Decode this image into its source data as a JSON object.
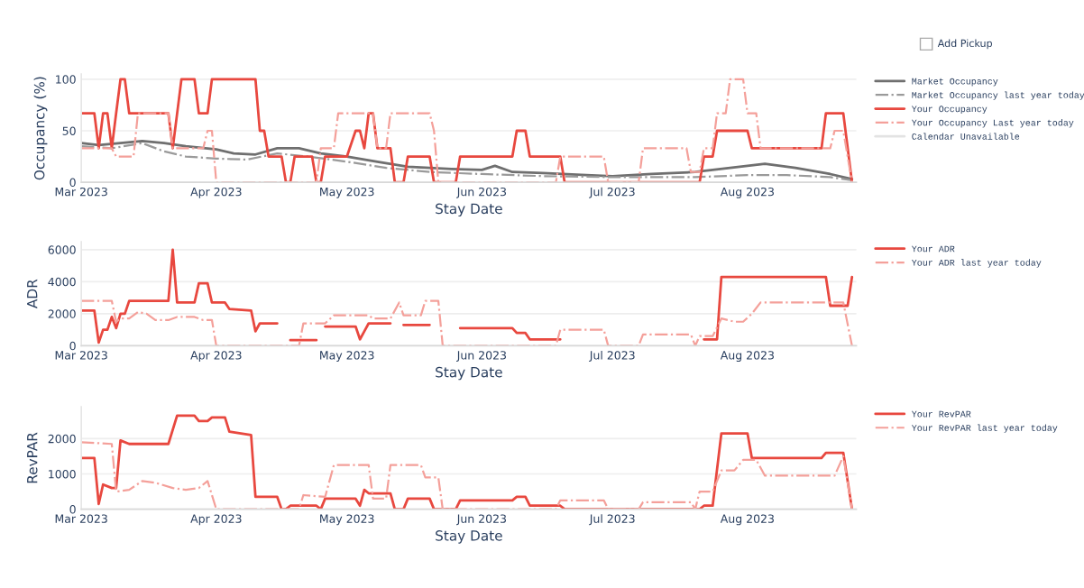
{
  "chart_data": [
    {
      "type": "line",
      "ylabel": "Occupancy (%)",
      "xlabel": "Stay Date",
      "ylim": [
        0,
        105
      ],
      "yticks": [
        0,
        50,
        100
      ],
      "xlim": [
        "2023-03-01",
        "2023-08-26"
      ],
      "xticks": [
        {
          "value": "2023-03-01",
          "label": "Mar 2023"
        },
        {
          "value": "2023-04-01",
          "label": "Apr 2023"
        },
        {
          "value": "2023-05-01",
          "label": "May 2023"
        },
        {
          "value": "2023-06-01",
          "label": "Jun 2023"
        },
        {
          "value": "2023-07-01",
          "label": "Jul 2023"
        },
        {
          "value": "2023-08-01",
          "label": "Aug 2023"
        }
      ],
      "grid": "y",
      "legend": "right",
      "annotations": [
        "Add Pickup"
      ],
      "series": [
        {
          "name": "Market Occupancy",
          "color": "#6f6f6f",
          "line_style": "solid",
          "x": [
            "2023-03-01",
            "2023-03-05",
            "2023-03-10",
            "2023-03-15",
            "2023-03-20",
            "2023-03-25",
            "2023-04-01",
            "2023-04-05",
            "2023-04-10",
            "2023-04-15",
            "2023-04-20",
            "2023-04-25",
            "2023-05-01",
            "2023-05-08",
            "2023-05-15",
            "2023-05-25",
            "2023-06-01",
            "2023-06-04",
            "2023-06-08",
            "2023-06-15",
            "2023-06-25",
            "2023-07-01",
            "2023-07-10",
            "2023-07-20",
            "2023-07-28",
            "2023-08-05",
            "2023-08-12",
            "2023-08-20",
            "2023-08-25"
          ],
          "values": [
            38,
            36,
            38,
            40,
            38,
            35,
            32,
            28,
            27,
            33,
            33,
            28,
            25,
            20,
            15,
            13,
            12,
            16,
            10,
            9,
            7,
            6,
            8,
            10,
            14,
            18,
            14,
            8,
            3
          ]
        },
        {
          "name": "Market Occupancy last year today",
          "color": "#9a9a9a",
          "line_style": "dashdot",
          "x": [
            "2023-03-01",
            "2023-03-08",
            "2023-03-15",
            "2023-03-20",
            "2023-03-25",
            "2023-04-01",
            "2023-04-08",
            "2023-04-15",
            "2023-04-22",
            "2023-05-01",
            "2023-05-10",
            "2023-05-20",
            "2023-06-01",
            "2023-06-15",
            "2023-07-01",
            "2023-07-20",
            "2023-08-01",
            "2023-08-10",
            "2023-08-20",
            "2023-08-25"
          ],
          "values": [
            35,
            33,
            38,
            30,
            25,
            23,
            22,
            28,
            25,
            20,
            14,
            10,
            8,
            6,
            5,
            5,
            7,
            7,
            5,
            2
          ]
        },
        {
          "name": "Your Occupancy",
          "color": "#e8483f",
          "line_style": "solid",
          "x": [
            "2023-03-01",
            "2023-03-04",
            "2023-03-05",
            "2023-03-06",
            "2023-03-07",
            "2023-03-08",
            "2023-03-09",
            "2023-03-10",
            "2023-03-11",
            "2023-03-12",
            "2023-03-21",
            "2023-03-22",
            "2023-03-24",
            "2023-03-27",
            "2023-03-28",
            "2023-03-30",
            "2023-03-31",
            "2023-04-10",
            "2023-04-11",
            "2023-04-12",
            "2023-04-13",
            "2023-04-16",
            "2023-04-17",
            "2023-04-18",
            "2023-04-19",
            "2023-04-23",
            "2023-04-24",
            "2023-04-25",
            "2023-04-26",
            "2023-05-01",
            "2023-05-03",
            "2023-05-04",
            "2023-05-05",
            "2023-05-06",
            "2023-05-07",
            "2023-05-08",
            "2023-05-11",
            "2023-05-12",
            "2023-05-14",
            "2023-05-15",
            "2023-05-20",
            "2023-05-21",
            "2023-05-26",
            "2023-05-27",
            "2023-06-08",
            "2023-06-09",
            "2023-06-11",
            "2023-06-12",
            "2023-06-19",
            "2023-06-20",
            "2023-07-21",
            "2023-07-22",
            "2023-07-24",
            "2023-07-25",
            "2023-08-01",
            "2023-08-02",
            "2023-08-18",
            "2023-08-19",
            "2023-08-23",
            "2023-08-25"
          ],
          "values": [
            67,
            67,
            33,
            67,
            67,
            33,
            67,
            100,
            100,
            67,
            67,
            33,
            100,
            100,
            67,
            67,
            100,
            100,
            50,
            50,
            25,
            25,
            0,
            0,
            25,
            25,
            0,
            0,
            25,
            25,
            50,
            50,
            33,
            67,
            67,
            33,
            33,
            0,
            0,
            25,
            25,
            0,
            0,
            25,
            25,
            50,
            50,
            25,
            25,
            0,
            0,
            25,
            25,
            50,
            50,
            33,
            33,
            67,
            67,
            0
          ]
        },
        {
          "name": "Your Occupancy Last year today",
          "color": "#f4a09a",
          "line_style": "dashdot",
          "x": [
            "2023-03-01",
            "2023-03-08",
            "2023-03-09",
            "2023-03-13",
            "2023-03-14",
            "2023-03-21",
            "2023-03-22",
            "2023-03-29",
            "2023-03-30",
            "2023-03-31",
            "2023-04-01",
            "2023-04-24",
            "2023-04-25",
            "2023-04-28",
            "2023-04-29",
            "2023-05-07",
            "2023-05-08",
            "2023-05-10",
            "2023-05-11",
            "2023-05-20",
            "2023-05-21",
            "2023-05-22",
            "2023-06-18",
            "2023-06-19",
            "2023-06-29",
            "2023-06-30",
            "2023-07-07",
            "2023-07-08",
            "2023-07-18",
            "2023-07-19",
            "2023-07-21",
            "2023-07-22",
            "2023-07-24",
            "2023-07-25",
            "2023-07-27",
            "2023-07-28",
            "2023-07-31",
            "2023-08-01",
            "2023-08-03",
            "2023-08-04",
            "2023-08-20",
            "2023-08-21",
            "2023-08-23",
            "2023-08-25"
          ],
          "values": [
            33,
            33,
            25,
            25,
            67,
            67,
            33,
            33,
            50,
            50,
            0,
            0,
            33,
            33,
            67,
            67,
            33,
            33,
            67,
            67,
            50,
            0,
            0,
            25,
            25,
            0,
            0,
            33,
            33,
            10,
            10,
            33,
            33,
            67,
            67,
            100,
            100,
            67,
            67,
            33,
            33,
            50,
            50,
            0
          ]
        },
        {
          "name": "Calendar Unavailable",
          "color": "#e3e3e3",
          "line_style": "solid"
        }
      ]
    },
    {
      "type": "line",
      "ylabel": "ADR",
      "xlabel": "Stay Date",
      "ylim": [
        0,
        6500
      ],
      "yticks": [
        0,
        2000,
        4000,
        6000
      ],
      "xlim": [
        "2023-03-01",
        "2023-08-26"
      ],
      "xticks": [
        {
          "value": "2023-03-01",
          "label": "Mar 2023"
        },
        {
          "value": "2023-04-01",
          "label": "Apr 2023"
        },
        {
          "value": "2023-05-01",
          "label": "May 2023"
        },
        {
          "value": "2023-06-01",
          "label": "Jun 2023"
        },
        {
          "value": "2023-07-01",
          "label": "Jul 2023"
        },
        {
          "value": "2023-08-01",
          "label": "Aug 2023"
        }
      ],
      "grid": "y",
      "legend": "right",
      "series": [
        {
          "name": "Your ADR",
          "color": "#e8483f",
          "line_style": "solid",
          "x": [
            "2023-03-01",
            "2023-03-04",
            "2023-03-05",
            "2023-03-06",
            "2023-03-07",
            "2023-03-08",
            "2023-03-09",
            "2023-03-10",
            "2023-03-11",
            "2023-03-12",
            "2023-03-21",
            "2023-03-22",
            "2023-03-23",
            "2023-03-27",
            "2023-03-28",
            "2023-03-30",
            "2023-03-31",
            "2023-04-03",
            "2023-04-04",
            "2023-04-09",
            "2023-04-10",
            "2023-04-11",
            "2023-04-15",
            "2023-04-16",
            "2023-04-18",
            "2023-04-24",
            "2023-04-25",
            "2023-04-26",
            "2023-05-03",
            "2023-05-04",
            "2023-05-05",
            "2023-05-06",
            "2023-05-11",
            "2023-05-12",
            "2023-05-14",
            "2023-05-20",
            "2023-05-21",
            "2023-05-27",
            "2023-06-08",
            "2023-06-09",
            "2023-06-11",
            "2023-06-12",
            "2023-06-19",
            "2023-06-20",
            "2023-07-22",
            "2023-07-25",
            "2023-07-26",
            "2023-08-19",
            "2023-08-20",
            "2023-08-24",
            "2023-08-25"
          ],
          "values": [
            2200,
            2200,
            200,
            1000,
            1000,
            1800,
            1100,
            2000,
            2000,
            2800,
            2800,
            6000,
            2700,
            2700,
            3900,
            3900,
            2700,
            2700,
            2300,
            2200,
            900,
            1400,
            1400,
            null,
            350,
            350,
            null,
            1200,
            1200,
            400,
            900,
            1400,
            1400,
            null,
            1300,
            1300,
            null,
            1100,
            1100,
            800,
            800,
            400,
            400,
            null,
            400,
            400,
            4300,
            4300,
            2500,
            2500,
            4300
          ]
        },
        {
          "name": "Your ADR last year today",
          "color": "#f4a09a",
          "line_style": "dashdot",
          "x": [
            "2023-03-01",
            "2023-03-08",
            "2023-03-09",
            "2023-03-10",
            "2023-03-12",
            "2023-03-14",
            "2023-03-16",
            "2023-03-18",
            "2023-03-21",
            "2023-03-23",
            "2023-03-27",
            "2023-03-29",
            "2023-03-31",
            "2023-04-01",
            "2023-04-20",
            "2023-04-21",
            "2023-04-26",
            "2023-04-28",
            "2023-05-06",
            "2023-05-07",
            "2023-05-11",
            "2023-05-13",
            "2023-05-14",
            "2023-05-18",
            "2023-05-19",
            "2023-05-22",
            "2023-05-23",
            "2023-06-18",
            "2023-06-19",
            "2023-06-29",
            "2023-06-30",
            "2023-07-07",
            "2023-07-08",
            "2023-07-19",
            "2023-07-20",
            "2023-07-21",
            "2023-07-24",
            "2023-07-26",
            "2023-07-29",
            "2023-07-31",
            "2023-08-02",
            "2023-08-04",
            "2023-08-23",
            "2023-08-25"
          ],
          "values": [
            2800,
            2800,
            1500,
            1700,
            1700,
            2100,
            2000,
            1600,
            1600,
            1800,
            1800,
            1600,
            1600,
            0,
            0,
            1400,
            1400,
            1900,
            1900,
            1700,
            1700,
            2700,
            1900,
            1900,
            2800,
            2800,
            0,
            0,
            1000,
            1000,
            0,
            0,
            700,
            700,
            0,
            600,
            600,
            1700,
            1500,
            1500,
            2000,
            2700,
            2700,
            0
          ]
        }
      ]
    },
    {
      "type": "line",
      "ylabel": "RevPAR",
      "xlabel": "Stay Date",
      "ylim": [
        0,
        2900
      ],
      "yticks": [
        0,
        1000,
        2000
      ],
      "xlim": [
        "2023-03-01",
        "2023-08-26"
      ],
      "xticks": [
        {
          "value": "2023-03-01",
          "label": "Mar 2023"
        },
        {
          "value": "2023-04-01",
          "label": "Apr 2023"
        },
        {
          "value": "2023-05-01",
          "label": "May 2023"
        },
        {
          "value": "2023-06-01",
          "label": "Jun 2023"
        },
        {
          "value": "2023-07-01",
          "label": "Jul 2023"
        },
        {
          "value": "2023-08-01",
          "label": "Aug 2023"
        }
      ],
      "grid": "y",
      "legend": "right",
      "series": [
        {
          "name": "Your RevPAR",
          "color": "#e8483f",
          "line_style": "solid",
          "x": [
            "2023-03-01",
            "2023-03-04",
            "2023-03-05",
            "2023-03-06",
            "2023-03-08",
            "2023-03-09",
            "2023-03-10",
            "2023-03-12",
            "2023-03-21",
            "2023-03-23",
            "2023-03-27",
            "2023-03-28",
            "2023-03-30",
            "2023-03-31",
            "2023-04-03",
            "2023-04-04",
            "2023-04-09",
            "2023-04-10",
            "2023-04-15",
            "2023-04-16",
            "2023-04-17",
            "2023-04-18",
            "2023-04-24",
            "2023-04-25",
            "2023-04-26",
            "2023-05-03",
            "2023-05-04",
            "2023-05-05",
            "2023-05-06",
            "2023-05-11",
            "2023-05-12",
            "2023-05-14",
            "2023-05-15",
            "2023-05-20",
            "2023-05-21",
            "2023-05-26",
            "2023-05-27",
            "2023-06-08",
            "2023-06-09",
            "2023-06-11",
            "2023-06-12",
            "2023-06-19",
            "2023-06-20",
            "2023-07-21",
            "2023-07-22",
            "2023-07-24",
            "2023-07-26",
            "2023-08-01",
            "2023-08-02",
            "2023-08-18",
            "2023-08-19",
            "2023-08-23",
            "2023-08-25"
          ],
          "values": [
            1450,
            1450,
            150,
            700,
            600,
            600,
            1950,
            1850,
            1850,
            2650,
            2650,
            2500,
            2500,
            2600,
            2600,
            2200,
            2100,
            350,
            350,
            0,
            0,
            100,
            100,
            0,
            300,
            300,
            100,
            550,
            450,
            450,
            0,
            0,
            300,
            300,
            0,
            0,
            250,
            250,
            350,
            350,
            100,
            100,
            0,
            0,
            100,
            100,
            2150,
            2150,
            1450,
            1450,
            1600,
            1600,
            0
          ]
        },
        {
          "name": "Your RevPAR last year today",
          "color": "#f4a09a",
          "line_style": "dashdot",
          "x": [
            "2023-03-01",
            "2023-03-08",
            "2023-03-09",
            "2023-03-12",
            "2023-03-15",
            "2023-03-18",
            "2023-03-22",
            "2023-03-25",
            "2023-03-28",
            "2023-03-30",
            "2023-04-01",
            "2023-04-20",
            "2023-04-21",
            "2023-04-26",
            "2023-04-28",
            "2023-05-06",
            "2023-05-07",
            "2023-05-10",
            "2023-05-11",
            "2023-05-18",
            "2023-05-19",
            "2023-05-22",
            "2023-05-23",
            "2023-06-18",
            "2023-06-19",
            "2023-06-29",
            "2023-06-30",
            "2023-07-07",
            "2023-07-08",
            "2023-07-19",
            "2023-07-20",
            "2023-07-21",
            "2023-07-24",
            "2023-07-26",
            "2023-07-29",
            "2023-07-31",
            "2023-08-03",
            "2023-08-05",
            "2023-08-21",
            "2023-08-23",
            "2023-08-25"
          ],
          "values": [
            1900,
            1850,
            500,
            550,
            800,
            750,
            600,
            550,
            600,
            800,
            0,
            0,
            400,
            350,
            1250,
            1250,
            300,
            300,
            1250,
            1250,
            900,
            900,
            0,
            0,
            250,
            250,
            0,
            0,
            200,
            200,
            0,
            500,
            500,
            1100,
            1100,
            1400,
            1400,
            950,
            950,
            1500,
            0
          ]
        }
      ]
    }
  ]
}
